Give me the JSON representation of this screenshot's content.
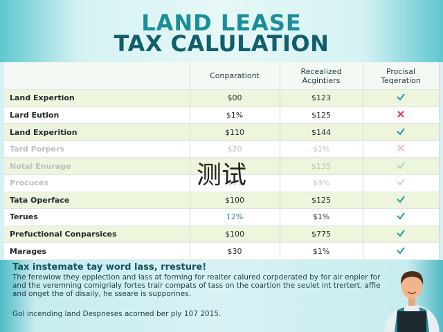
{
  "header": {
    "title_lines": [
      "LAND LEASE",
      "TAX CALULATION"
    ]
  },
  "table": {
    "columns": [
      "Conparationt",
      "Recealized Acgintiers",
      "Procisal Teqeration"
    ],
    "rows": [
      [
        "Land Expertion",
        "$00",
        "$123"
      ],
      [
        "Lard Eution",
        "$1%",
        "$125"
      ],
      [
        "Land Experition",
        "$110",
        "$144"
      ],
      [
        "Tard Porpers",
        "$20",
        "$1%"
      ],
      [
        "Notal Enurage",
        null,
        "$135"
      ],
      [
        "Procuces",
        "$75",
        "$3%"
      ],
      [
        "Tata Operface",
        "$100",
        "$125"
      ],
      [
        "Terues",
        "12%",
        "$1%"
      ],
      [
        "Prefuctional Conparsices",
        "$100",
        "$775"
      ],
      [
        "Marages",
        "$30",
        "$1%"
      ]
    ]
  },
  "footer": {
    "heading": "Tax instemate tay word lass, rresture!",
    "paragraph": "The ferewiow they epplection and lass at forming for realter calured corpderated by for air enpler for and the veremning comigrialy fortes trair compats of tass on the coartion the seulet int trertert, affie and onget the of disaily, he sseare is supporines.",
    "note": "Gol incending land Despneses acorned ber ply 107 2015."
  },
  "watermark": "测试"
}
